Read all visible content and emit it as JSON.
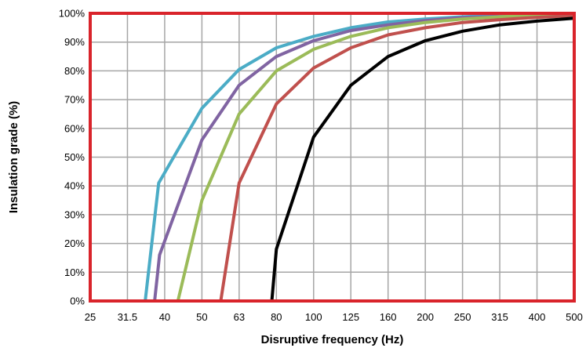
{
  "chart_data": {
    "type": "line",
    "title": "",
    "xlabel": "Disruptive frequency (Hz)",
    "ylabel": "Insulation grade (%)",
    "x_categories": [
      "25",
      "31.5",
      "40",
      "50",
      "63",
      "80",
      "100",
      "125",
      "160",
      "200",
      "250",
      "315",
      "400",
      "500"
    ],
    "x_scale": "log",
    "xlim": [
      25,
      500
    ],
    "ylim": [
      0,
      100
    ],
    "y_ticks": [
      "0%",
      "10%",
      "20%",
      "30%",
      "40%",
      "50%",
      "60%",
      "70%",
      "80%",
      "90%",
      "100%"
    ],
    "grid": true,
    "legend": "none",
    "series": [
      {
        "color": "#4bacc6",
        "x": [
          35.3,
          38.5,
          50,
          63,
          80,
          100,
          125,
          160,
          200,
          250,
          315,
          400,
          500
        ],
        "y": [
          0,
          41,
          67,
          80.5,
          88,
          92,
          95,
          97,
          98,
          98.8,
          99.3,
          99.6,
          99.8
        ]
      },
      {
        "color": "#8064a2",
        "x": [
          37.5,
          38.7,
          50,
          63,
          80,
          100,
          125,
          160,
          200,
          250,
          315,
          400,
          500
        ],
        "y": [
          0,
          16,
          56,
          75,
          85,
          90.5,
          94,
          96,
          97.5,
          98.5,
          99,
          99.4,
          99.7
        ]
      },
      {
        "color": "#9bbb59",
        "x": [
          43.3,
          50,
          63,
          80,
          100,
          125,
          160,
          200,
          250,
          315,
          400,
          500
        ],
        "y": [
          0,
          35,
          65,
          80,
          87.5,
          92,
          95,
          96.8,
          98,
          98.8,
          99.3,
          99.6
        ]
      },
      {
        "color": "#c0504d",
        "x": [
          56.2,
          63,
          80,
          100,
          125,
          160,
          200,
          250,
          315,
          400,
          500
        ],
        "y": [
          0,
          41,
          68.5,
          81,
          88,
          92.5,
          95,
          96.8,
          97.8,
          98.6,
          99.2
        ]
      },
      {
        "color": "#000000",
        "x": [
          77.7,
          80,
          100,
          125,
          160,
          200,
          250,
          315,
          400,
          500
        ],
        "y": [
          0,
          18,
          57,
          75,
          85,
          90.5,
          93.8,
          96,
          97.3,
          98.3
        ]
      }
    ],
    "colors": {
      "plot_border": "#d9242b",
      "grid": "#a6a6a6"
    }
  }
}
